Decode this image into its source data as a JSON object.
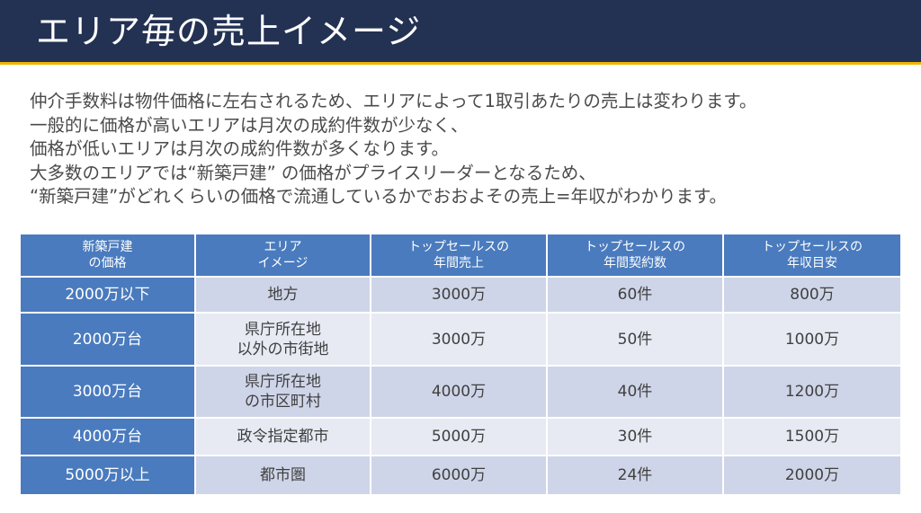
{
  "header": {
    "title": "エリア毎の売上イメージ",
    "background_color": "#233152",
    "accent_color": "#f0b400"
  },
  "body": {
    "lines": [
      "仲介手数料は物件価格に左右されるため、エリアによって1取引あたりの売上は変わります。",
      "一般的に価格が高いエリアは月次の成約件数が少なく、",
      "価格が低いエリアは月次の成約件数が多くなります。",
      "大多数のエリアでは“新築戸建” の価格がプライスリーダーとなるため、",
      "“新築戸建”がどれくらいの価格で流通しているかでおおよその売上=年収がわかります。"
    ]
  },
  "table": {
    "headers": [
      [
        "新築戸建",
        "の価格"
      ],
      [
        "エリア",
        "イメージ"
      ],
      [
        "トップセールスの",
        "年間売上"
      ],
      [
        "トップセールスの",
        "年間契約数"
      ],
      [
        "トップセールスの",
        "年収目安"
      ]
    ],
    "rows": [
      {
        "price": "2000万以下",
        "area": [
          "地方"
        ],
        "sales": "3000万",
        "contracts": "60件",
        "income": "800万"
      },
      {
        "price": "2000万台",
        "area": [
          "県庁所在地",
          "以外の市街地"
        ],
        "sales": "3000万",
        "contracts": "50件",
        "income": "1000万"
      },
      {
        "price": "3000万台",
        "area": [
          "県庁所在地",
          "の市区町村"
        ],
        "sales": "4000万",
        "contracts": "40件",
        "income": "1200万"
      },
      {
        "price": "4000万台",
        "area": [
          "政令指定都市"
        ],
        "sales": "5000万",
        "contracts": "30件",
        "income": "1500万"
      },
      {
        "price": "5000万以上",
        "area": [
          "都市圏"
        ],
        "sales": "6000万",
        "contracts": "24件",
        "income": "2000万"
      }
    ],
    "header_color": "#4a7bbe",
    "row_color_odd": "#cfd5e8",
    "row_color_even": "#e7eaf3"
  }
}
